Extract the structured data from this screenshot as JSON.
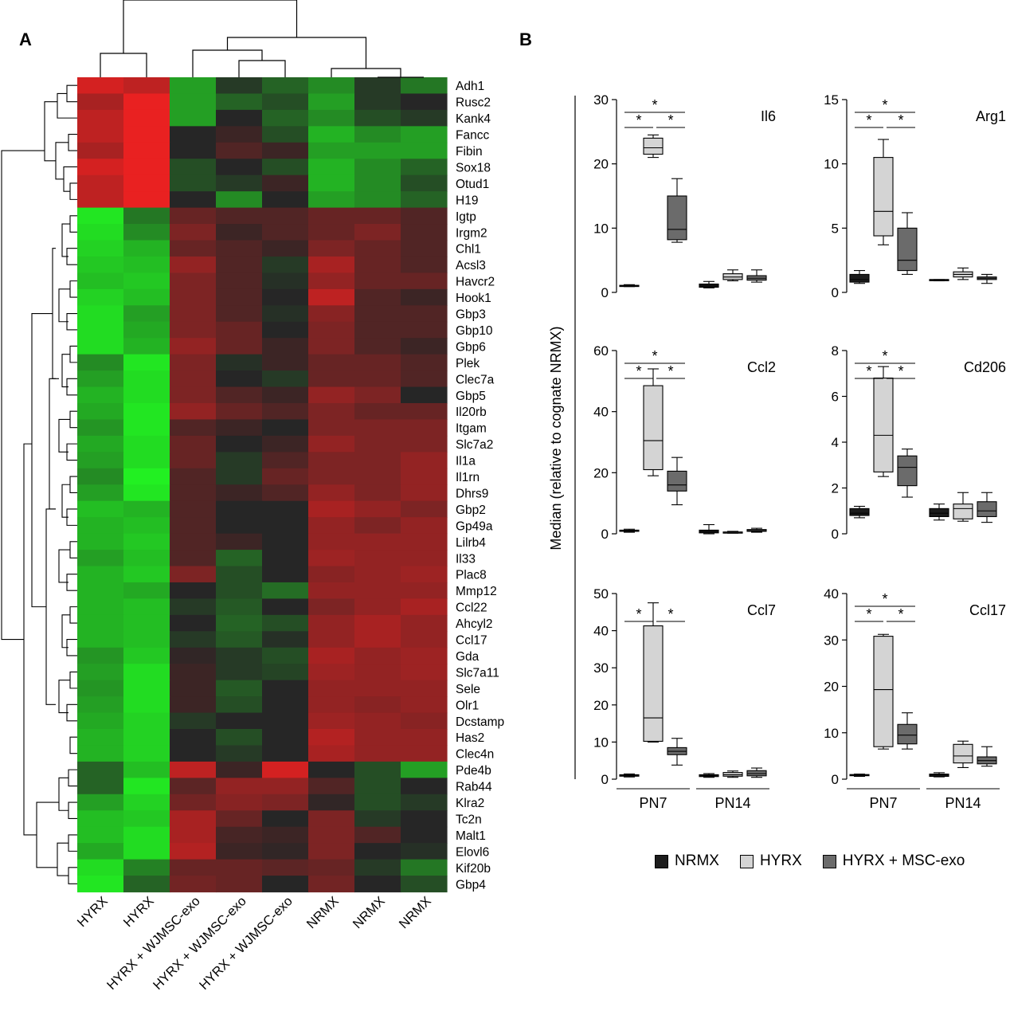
{
  "panel_labels": {
    "a": "A",
    "b": "B"
  },
  "colors": {
    "high": "#ff2020",
    "low": "#22f022",
    "mid": "#262626",
    "nrmx": "#1c1c1c",
    "hyrx": "#d4d4d4",
    "hyrx_msc": "#6b6b6b"
  },
  "chart_data": [
    {
      "type": "heatmap",
      "samples": [
        "HYRX",
        "HYRX",
        "HYRX + WJMSC-exo",
        "HYRX + WJMSC-exo",
        "HYRX + WJMSC-exo",
        "NRMX",
        "NRMX",
        "NRMX"
      ],
      "genes": [
        "Adh1",
        "Rusc2",
        "Kank4",
        "Fancc",
        "Fibin",
        "Sox18",
        "Otud1",
        "H19",
        "Igtp",
        "Irgm2",
        "Chl1",
        "Acsl3",
        "Havcr2",
        "Hook1",
        "Gbp3",
        "Gbp10",
        "Gbp6",
        "Plek",
        "Clec7a",
        "Gbp5",
        "Il20rb",
        "Itgam",
        "Slc7a2",
        "Il1a",
        "Il1rn",
        "Dhrs9",
        "Gbp2",
        "Gp49a",
        "Lilrb4",
        "Il33",
        "Plac8",
        "Mmp12",
        "Ccl22",
        "Ahcyl2",
        "Ccl17",
        "Gda",
        "Slc7a11",
        "Sele",
        "Olr1",
        "Dcstamp",
        "Has2",
        "Clec4n",
        "Pde4b",
        "Rab44",
        "Klra2",
        "Tc2n",
        "Malt1",
        "Elovl6",
        "Kif20b",
        "Gbp4"
      ],
      "values": [
        [
          0.8,
          0.7,
          -0.6,
          -0.1,
          -0.3,
          -0.5,
          -0.1,
          -0.4
        ],
        [
          0.6,
          0.9,
          -0.6,
          -0.3,
          -0.2,
          -0.6,
          -0.1,
          0.0
        ],
        [
          0.7,
          0.9,
          -0.6,
          0.0,
          -0.3,
          -0.5,
          -0.2,
          -0.1
        ],
        [
          0.7,
          0.9,
          0.0,
          0.1,
          -0.2,
          -0.7,
          -0.5,
          -0.6
        ],
        [
          0.6,
          0.9,
          0.0,
          0.2,
          0.1,
          -0.6,
          -0.6,
          -0.6
        ],
        [
          0.8,
          0.9,
          -0.2,
          0.0,
          -0.2,
          -0.7,
          -0.5,
          -0.3
        ],
        [
          0.7,
          0.9,
          -0.2,
          -0.1,
          0.1,
          -0.7,
          -0.5,
          -0.2
        ],
        [
          0.7,
          0.9,
          0.0,
          -0.5,
          0.0,
          -0.6,
          -0.5,
          -0.3
        ],
        [
          -0.95,
          -0.4,
          0.3,
          0.2,
          0.2,
          0.3,
          0.3,
          0.2
        ],
        [
          -0.9,
          -0.5,
          0.4,
          0.1,
          0.2,
          0.3,
          0.4,
          0.2
        ],
        [
          -0.85,
          -0.7,
          0.3,
          0.2,
          0.1,
          0.4,
          0.3,
          0.2
        ],
        [
          -0.8,
          -0.75,
          0.5,
          0.2,
          -0.1,
          0.6,
          0.3,
          0.2
        ],
        [
          -0.75,
          -0.8,
          0.4,
          0.2,
          -0.05,
          0.5,
          0.3,
          0.3
        ],
        [
          -0.85,
          -0.75,
          0.4,
          0.2,
          0.0,
          0.7,
          0.2,
          0.1
        ],
        [
          -0.9,
          -0.6,
          0.4,
          0.2,
          -0.05,
          0.45,
          0.2,
          0.2
        ],
        [
          -0.9,
          -0.65,
          0.4,
          0.3,
          0.0,
          0.4,
          0.2,
          0.2
        ],
        [
          -0.9,
          -0.7,
          0.5,
          0.3,
          0.1,
          0.4,
          0.2,
          0.1
        ],
        [
          -0.5,
          -0.95,
          0.4,
          -0.05,
          0.1,
          0.3,
          0.3,
          0.2
        ],
        [
          -0.6,
          -0.9,
          0.4,
          0.0,
          -0.1,
          0.3,
          0.3,
          0.2
        ],
        [
          -0.7,
          -0.9,
          0.4,
          0.2,
          0.1,
          0.5,
          0.4,
          0.0
        ],
        [
          -0.65,
          -0.95,
          0.5,
          0.3,
          0.2,
          0.4,
          0.3,
          0.3
        ],
        [
          -0.55,
          -0.95,
          0.2,
          0.1,
          0.0,
          0.4,
          0.4,
          0.4
        ],
        [
          -0.65,
          -0.9,
          0.3,
          0.0,
          0.1,
          0.5,
          0.4,
          0.4
        ],
        [
          -0.6,
          -0.9,
          0.3,
          -0.1,
          0.2,
          0.4,
          0.4,
          0.5
        ],
        [
          -0.5,
          -1.0,
          0.2,
          -0.1,
          0.3,
          0.4,
          0.4,
          0.5
        ],
        [
          -0.6,
          -0.95,
          0.2,
          0.1,
          0.2,
          0.5,
          0.4,
          0.5
        ],
        [
          -0.75,
          -0.7,
          0.2,
          0.0,
          0.0,
          0.6,
          0.5,
          0.4
        ],
        [
          -0.7,
          -0.75,
          0.2,
          0.0,
          0.0,
          0.5,
          0.4,
          0.5
        ],
        [
          -0.7,
          -0.8,
          0.2,
          0.1,
          0.0,
          0.5,
          0.5,
          0.5
        ],
        [
          -0.6,
          -0.75,
          0.2,
          -0.3,
          0.0,
          0.55,
          0.5,
          0.5
        ],
        [
          -0.7,
          -0.8,
          0.4,
          -0.2,
          0.0,
          0.45,
          0.5,
          0.55
        ],
        [
          -0.7,
          -0.65,
          0.0,
          -0.2,
          -0.35,
          0.5,
          0.5,
          0.5
        ],
        [
          -0.7,
          -0.75,
          -0.1,
          -0.25,
          0.0,
          0.4,
          0.5,
          0.6
        ],
        [
          -0.7,
          -0.75,
          0.0,
          -0.3,
          -0.2,
          0.5,
          0.6,
          0.5
        ],
        [
          -0.7,
          -0.75,
          -0.1,
          -0.25,
          -0.05,
          0.5,
          0.6,
          0.5
        ],
        [
          -0.55,
          -0.8,
          0.05,
          -0.1,
          -0.2,
          0.6,
          0.5,
          0.55
        ],
        [
          -0.6,
          -0.9,
          0.1,
          -0.1,
          -0.15,
          0.55,
          0.5,
          0.55
        ],
        [
          -0.55,
          -0.9,
          0.1,
          -0.25,
          0.0,
          0.5,
          0.5,
          0.5
        ],
        [
          -0.6,
          -0.9,
          0.1,
          -0.2,
          0.0,
          0.5,
          0.45,
          0.5
        ],
        [
          -0.65,
          -0.85,
          -0.1,
          0.0,
          0.0,
          0.55,
          0.5,
          0.45
        ],
        [
          -0.7,
          -0.85,
          0.0,
          -0.2,
          0.0,
          0.65,
          0.5,
          0.5
        ],
        [
          -0.7,
          -0.85,
          0.0,
          -0.1,
          0.0,
          0.6,
          0.5,
          0.5
        ],
        [
          -0.3,
          -0.75,
          0.7,
          0.1,
          0.8,
          0.0,
          -0.2,
          -0.6
        ],
        [
          -0.3,
          -0.95,
          0.25,
          0.5,
          0.5,
          0.2,
          -0.2,
          0.0
        ],
        [
          -0.6,
          -0.85,
          0.35,
          0.45,
          0.4,
          0.05,
          -0.2,
          -0.1
        ],
        [
          -0.75,
          -0.8,
          0.6,
          0.3,
          0.0,
          0.4,
          -0.1,
          0.0
        ],
        [
          -0.75,
          -0.9,
          0.6,
          0.15,
          0.1,
          0.4,
          0.2,
          0.0
        ],
        [
          -0.65,
          -0.9,
          0.65,
          0.1,
          0.05,
          0.4,
          0.0,
          -0.05
        ],
        [
          -0.9,
          -0.45,
          0.3,
          0.3,
          0.25,
          0.3,
          -0.1,
          -0.4
        ],
        [
          -0.95,
          -0.3,
          0.35,
          0.3,
          0.0,
          0.35,
          0.0,
          -0.2
        ]
      ]
    },
    {
      "type": "box",
      "ylabel": "Median (relative to cognate NRMX)",
      "groups": [
        "PN7",
        "PN14"
      ],
      "series": [
        {
          "name": "NRMX"
        },
        {
          "name": "HYRX"
        },
        {
          "name": "HYRX + MSC-exo"
        }
      ],
      "panels": [
        {
          "title": "Il6",
          "ylim": [
            0,
            30
          ],
          "ticks": [
            0,
            10,
            20,
            30
          ],
          "boxes": [
            [
              [
                0.9,
                1.0,
                1.0,
                1.1,
                1.2
              ],
              [
                21,
                21.5,
                22.5,
                24,
                24.5
              ],
              [
                7.8,
                8.2,
                9.8,
                15,
                17.7
              ]
            ],
            [
              [
                0.7,
                0.8,
                1.0,
                1.3,
                1.7
              ],
              [
                1.8,
                2.0,
                2.4,
                2.9,
                3.5
              ],
              [
                1.6,
                1.9,
                2.2,
                2.6,
                3.5
              ]
            ]
          ],
          "sig": [
            [
              "*",
              "*",
              "*"
            ]
          ]
        },
        {
          "title": "Arg1",
          "ylim": [
            0,
            15
          ],
          "ticks": [
            0,
            5,
            10,
            15
          ],
          "boxes": [
            [
              [
                0.7,
                0.8,
                1.0,
                1.4,
                1.7
              ],
              [
                3.7,
                4.4,
                6.3,
                10.5,
                11.9
              ],
              [
                1.4,
                1.7,
                2.5,
                5.0,
                6.2
              ]
            ],
            [
              [
                0.9,
                1.0,
                1.0,
                1.0,
                1.0
              ],
              [
                1.0,
                1.2,
                1.4,
                1.6,
                1.9
              ],
              [
                0.7,
                1.0,
                1.1,
                1.2,
                1.4
              ]
            ]
          ],
          "sig": [
            [
              "*",
              "*",
              "*"
            ]
          ]
        },
        {
          "title": "Ccl2",
          "ylim": [
            0,
            60
          ],
          "ticks": [
            0,
            20,
            40,
            60
          ],
          "boxes": [
            [
              [
                0.5,
                0.8,
                1.0,
                1.2,
                1.5
              ],
              [
                19,
                21,
                30.5,
                48.5,
                54
              ],
              [
                9.5,
                14,
                16,
                20.5,
                25
              ]
            ],
            [
              [
                0.0,
                0.3,
                0.8,
                1.2,
                3.0
              ],
              [
                0.2,
                0.4,
                0.5,
                0.6,
                0.8
              ],
              [
                0.5,
                0.8,
                1.0,
                1.4,
                1.8
              ]
            ]
          ],
          "sig": [
            [
              "*",
              "*",
              "*"
            ]
          ]
        },
        {
          "title": "Cd206",
          "ylim": [
            0,
            8
          ],
          "ticks": [
            0,
            2,
            4,
            6,
            8
          ],
          "boxes": [
            [
              [
                0.7,
                0.8,
                0.9,
                1.1,
                1.2
              ],
              [
                2.5,
                2.7,
                4.3,
                6.8,
                7.3
              ],
              [
                1.6,
                2.1,
                2.9,
                3.4,
                3.7
              ]
            ],
            [
              [
                0.6,
                0.75,
                0.9,
                1.1,
                1.3
              ],
              [
                0.55,
                0.65,
                1.1,
                1.3,
                1.8
              ],
              [
                0.5,
                0.75,
                1.0,
                1.4,
                1.8
              ]
            ]
          ],
          "sig": [
            [
              "*",
              "*",
              "*"
            ]
          ]
        },
        {
          "title": "Ccl7",
          "ylim": [
            0,
            50
          ],
          "ticks": [
            0,
            10,
            20,
            30,
            40,
            50
          ],
          "boxes": [
            [
              [
                0.6,
                0.8,
                1.0,
                1.2,
                1.4
              ],
              [
                10,
                10.2,
                16.5,
                41.3,
                47.5
              ],
              [
                3.8,
                6.6,
                7.5,
                8.5,
                11
              ]
            ],
            [
              [
                0.5,
                0.7,
                1.0,
                1.2,
                1.5
              ],
              [
                0.5,
                0.8,
                1.2,
                1.8,
                2.2
              ],
              [
                0.5,
                0.9,
                1.5,
                2.3,
                3.0
              ]
            ]
          ],
          "sig": [
            [
              "*",
              null,
              "*"
            ]
          ]
        },
        {
          "title": "Ccl17",
          "ylim": [
            0,
            40
          ],
          "ticks": [
            0,
            10,
            20,
            30,
            40
          ],
          "boxes": [
            [
              [
                0.6,
                0.8,
                0.9,
                1.0,
                1.1
              ],
              [
                6.5,
                7.0,
                19.3,
                30.8,
                31.2
              ],
              [
                6.5,
                7.6,
                9.5,
                11.8,
                14.3
              ]
            ],
            [
              [
                0.5,
                0.6,
                0.9,
                1.1,
                1.4
              ],
              [
                2.5,
                3.5,
                5.0,
                7.5,
                8.2
              ],
              [
                2.8,
                3.3,
                4.0,
                4.8,
                7.0
              ]
            ]
          ],
          "sig": [
            [
              "*",
              "*",
              "*"
            ]
          ]
        }
      ]
    }
  ]
}
